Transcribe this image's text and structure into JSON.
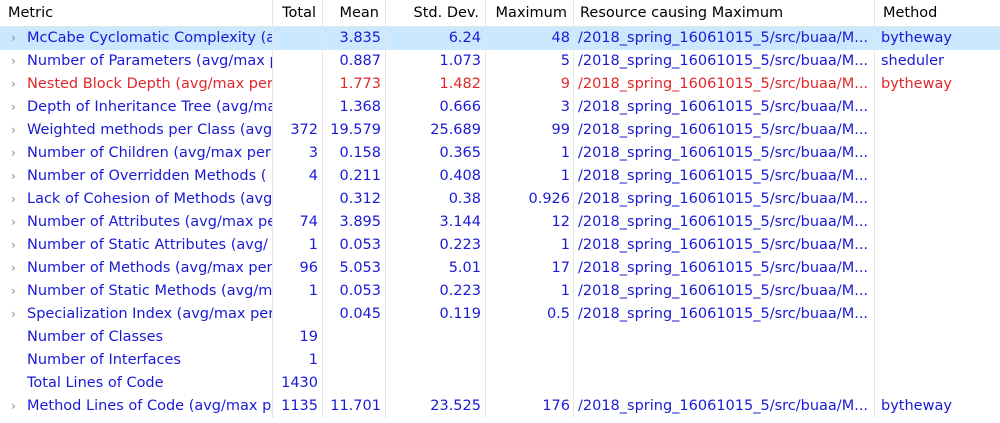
{
  "columns": {
    "metric": "Metric",
    "total": "Total",
    "mean": "Mean",
    "std": "Std. Dev.",
    "max": "Maximum",
    "resource": "Resource causing Maximum",
    "method": "Method"
  },
  "rows": [
    {
      "metric": "McCabe Cyclomatic Complexity (a",
      "total": "",
      "mean": "3.835",
      "std": "6.24",
      "max": "48",
      "resource": "/2018_spring_16061015_5/src/buaa/M...",
      "method": "bytheway",
      "expandable": true,
      "selected": true,
      "highlight": false
    },
    {
      "metric": "Number of Parameters (avg/max p",
      "total": "",
      "mean": "0.887",
      "std": "1.073",
      "max": "5",
      "resource": "/2018_spring_16061015_5/src/buaa/M...",
      "method": "sheduler",
      "expandable": true,
      "selected": false,
      "highlight": false
    },
    {
      "metric": "Nested Block Depth (avg/max per",
      "total": "",
      "mean": "1.773",
      "std": "1.482",
      "max": "9",
      "resource": "/2018_spring_16061015_5/src/buaa/M...",
      "method": "bytheway",
      "expandable": true,
      "selected": false,
      "highlight": true
    },
    {
      "metric": "Depth of Inheritance Tree (avg/ma",
      "total": "",
      "mean": "1.368",
      "std": "0.666",
      "max": "3",
      "resource": "/2018_spring_16061015_5/src/buaa/M...",
      "method": "",
      "expandable": true,
      "selected": false,
      "highlight": false
    },
    {
      "metric": "Weighted methods per Class (avg",
      "total": "372",
      "mean": "19.579",
      "std": "25.689",
      "max": "99",
      "resource": "/2018_spring_16061015_5/src/buaa/M...",
      "method": "",
      "expandable": true,
      "selected": false,
      "highlight": false
    },
    {
      "metric": "Number of Children (avg/max per",
      "total": "3",
      "mean": "0.158",
      "std": "0.365",
      "max": "1",
      "resource": "/2018_spring_16061015_5/src/buaa/M...",
      "method": "",
      "expandable": true,
      "selected": false,
      "highlight": false
    },
    {
      "metric": "Number of Overridden Methods (",
      "total": "4",
      "mean": "0.211",
      "std": "0.408",
      "max": "1",
      "resource": "/2018_spring_16061015_5/src/buaa/M...",
      "method": "",
      "expandable": true,
      "selected": false,
      "highlight": false
    },
    {
      "metric": "Lack of Cohesion of Methods (avg",
      "total": "",
      "mean": "0.312",
      "std": "0.38",
      "max": "0.926",
      "resource": "/2018_spring_16061015_5/src/buaa/M...",
      "method": "",
      "expandable": true,
      "selected": false,
      "highlight": false
    },
    {
      "metric": "Number of Attributes (avg/max pe",
      "total": "74",
      "mean": "3.895",
      "std": "3.144",
      "max": "12",
      "resource": "/2018_spring_16061015_5/src/buaa/M...",
      "method": "",
      "expandable": true,
      "selected": false,
      "highlight": false
    },
    {
      "metric": "Number of Static Attributes (avg/",
      "total": "1",
      "mean": "0.053",
      "std": "0.223",
      "max": "1",
      "resource": "/2018_spring_16061015_5/src/buaa/M...",
      "method": "",
      "expandable": true,
      "selected": false,
      "highlight": false
    },
    {
      "metric": "Number of Methods (avg/max per",
      "total": "96",
      "mean": "5.053",
      "std": "5.01",
      "max": "17",
      "resource": "/2018_spring_16061015_5/src/buaa/M...",
      "method": "",
      "expandable": true,
      "selected": false,
      "highlight": false
    },
    {
      "metric": "Number of Static Methods (avg/m",
      "total": "1",
      "mean": "0.053",
      "std": "0.223",
      "max": "1",
      "resource": "/2018_spring_16061015_5/src/buaa/M...",
      "method": "",
      "expandable": true,
      "selected": false,
      "highlight": false
    },
    {
      "metric": "Specialization Index (avg/max per",
      "total": "",
      "mean": "0.045",
      "std": "0.119",
      "max": "0.5",
      "resource": "/2018_spring_16061015_5/src/buaa/M...",
      "method": "",
      "expandable": true,
      "selected": false,
      "highlight": false
    },
    {
      "metric": "Number of Classes",
      "total": "19",
      "mean": "",
      "std": "",
      "max": "",
      "resource": "",
      "method": "",
      "expandable": false,
      "selected": false,
      "highlight": false
    },
    {
      "metric": "Number of Interfaces",
      "total": "1",
      "mean": "",
      "std": "",
      "max": "",
      "resource": "",
      "method": "",
      "expandable": false,
      "selected": false,
      "highlight": false
    },
    {
      "metric": "Total Lines of Code",
      "total": "1430",
      "mean": "",
      "std": "",
      "max": "",
      "resource": "",
      "method": "",
      "expandable": false,
      "selected": false,
      "highlight": false
    },
    {
      "metric": "Method Lines of Code (avg/max p",
      "total": "1135",
      "mean": "11.701",
      "std": "23.525",
      "max": "176",
      "resource": "/2018_spring_16061015_5/src/buaa/M...",
      "method": "bytheway",
      "expandable": true,
      "selected": false,
      "highlight": false
    }
  ],
  "icons": {
    "expand": "chevron-right-icon",
    "expand_glyph": "›"
  },
  "colors": {
    "text": "#1a1ad6",
    "warning": "#e0282a",
    "selected": "#cce8ff"
  }
}
